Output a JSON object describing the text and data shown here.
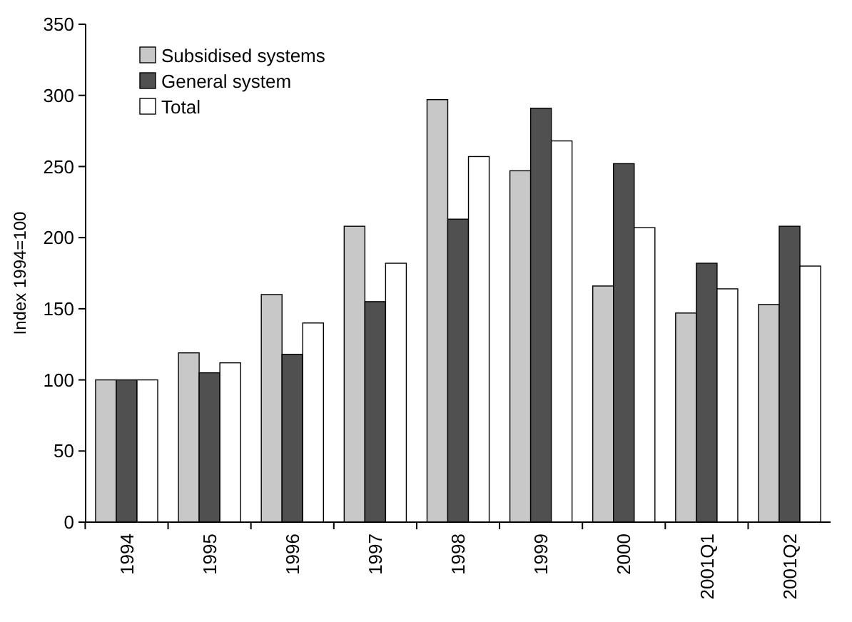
{
  "chart_data": {
    "type": "bar",
    "ylabel": "Index 1994=100",
    "categories": [
      "1994",
      "1995",
      "1996",
      "1997",
      "1998",
      "1999",
      "2000",
      "2001Q1",
      "2001Q2"
    ],
    "series": [
      {
        "name": "Subsidised systems",
        "color": "#c8c8c8",
        "values": [
          100,
          119,
          160,
          208,
          297,
          247,
          166,
          147,
          153
        ]
      },
      {
        "name": "General system",
        "color": "#505050",
        "values": [
          100,
          105,
          118,
          155,
          213,
          291,
          252,
          182,
          208
        ]
      },
      {
        "name": "Total",
        "color": "#ffffff",
        "values": [
          100,
          112,
          140,
          182,
          257,
          268,
          207,
          164,
          180
        ]
      }
    ],
    "ylim": [
      0,
      350
    ],
    "yticks": [
      0,
      50,
      100,
      150,
      200,
      250,
      300,
      350
    ],
    "grid": false,
    "legend": "top left"
  }
}
